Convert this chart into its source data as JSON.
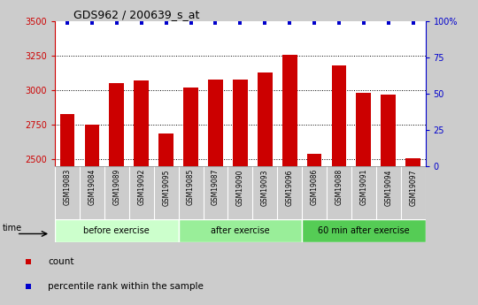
{
  "title": "GDS962 / 200639_s_at",
  "samples": [
    "GSM19083",
    "GSM19084",
    "GSM19089",
    "GSM19092",
    "GSM19095",
    "GSM19085",
    "GSM19087",
    "GSM19090",
    "GSM19093",
    "GSM19096",
    "GSM19086",
    "GSM19088",
    "GSM19091",
    "GSM19094",
    "GSM19097"
  ],
  "counts": [
    2830,
    2750,
    3050,
    3070,
    2690,
    3020,
    3080,
    3075,
    3130,
    3260,
    2540,
    3180,
    2980,
    2970,
    2510
  ],
  "groups": [
    {
      "label": "before exercise",
      "start": 0,
      "end": 5,
      "color": "#ccffcc"
    },
    {
      "label": "after exercise",
      "start": 5,
      "end": 10,
      "color": "#99ee99"
    },
    {
      "label": "60 min after exercise",
      "start": 10,
      "end": 15,
      "color": "#55cc55"
    }
  ],
  "bar_color": "#cc0000",
  "percentile_color": "#0000cc",
  "ylim_left": [
    2450,
    3500
  ],
  "ylim_right": [
    0,
    100
  ],
  "yticks_left": [
    2500,
    2750,
    3000,
    3250,
    3500
  ],
  "yticks_right": [
    0,
    25,
    50,
    75,
    100
  ],
  "bg_color": "#cccccc",
  "xtick_bg_color": "#cccccc",
  "plot_bg_color": "#ffffff",
  "grid_color": "#000000",
  "title_color": "#000000",
  "label_color_left": "#cc0000",
  "label_color_right": "#0000cc",
  "legend_count_label": "count",
  "legend_percentile_label": "percentile rank within the sample",
  "time_label": "time"
}
